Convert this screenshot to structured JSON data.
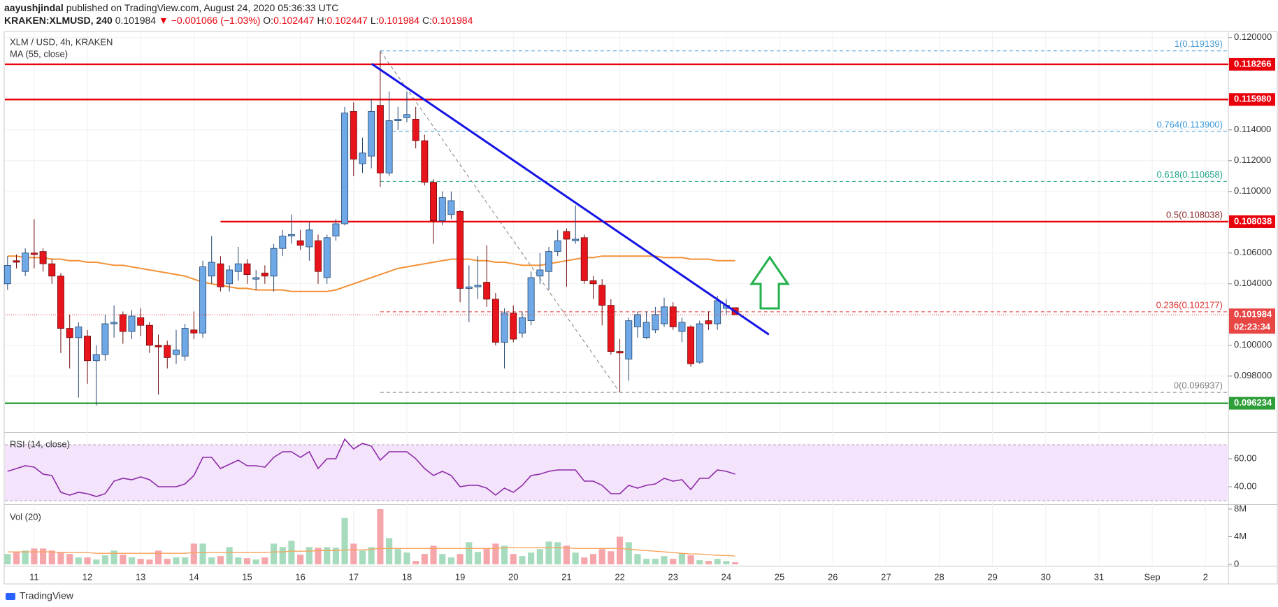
{
  "header": {
    "author": "aayushjindal",
    "published": "published on TradingView.com, August 24, 2020 05:36:33 UTC",
    "symbol": "KRAKEN:XLMUSD, 240",
    "price": "0.101984",
    "change": "▼ −0.001066 (−1.03%)",
    "ohlc": [
      {
        "label": "O:",
        "value": "0.102447"
      },
      {
        "label": "H:",
        "value": "0.102447"
      },
      {
        "label": "L:",
        "value": "0.101984"
      },
      {
        "label": "C:",
        "value": "0.101984"
      }
    ]
  },
  "brand": "TradingView",
  "chart_data": [
    {
      "type": "candlestick",
      "title": "XLM / USD, 4h, KRAKEN",
      "x": [
        10.5,
        10.667,
        10.833,
        11,
        11.167,
        11.333,
        11.5,
        11.667,
        11.833,
        12,
        12.167,
        12.333,
        12.5,
        12.667,
        12.833,
        13,
        13.167,
        13.333,
        13.5,
        13.667,
        13.833,
        14,
        14.167,
        14.333,
        14.5,
        14.667,
        14.833,
        15,
        15.167,
        15.333,
        15.5,
        15.667,
        15.833,
        16,
        16.167,
        16.333,
        16.5,
        16.667,
        16.833,
        17,
        17.167,
        17.333,
        17.5,
        17.667,
        17.833,
        18,
        18.167,
        18.333,
        18.5,
        18.667,
        18.833,
        19,
        19.167,
        19.333,
        19.5,
        19.667,
        19.833,
        20,
        20.167,
        20.333,
        20.5,
        20.667,
        20.833,
        21,
        21.167,
        21.333,
        21.5,
        21.667,
        21.833,
        22,
        22.167,
        22.333,
        22.5,
        22.667,
        22.833,
        23,
        23.167,
        23.333,
        23.5,
        23.667,
        23.833,
        24,
        24.167
      ],
      "open": [
        0.104,
        0.1055,
        0.1048,
        0.106,
        0.1061,
        0.1053,
        0.1045,
        0.1011,
        0.1005,
        0.1006,
        0.099,
        0.0994,
        0.1014,
        0.102,
        0.1009,
        0.1018,
        0.1013,
        0.1,
        0.1,
        0.0994,
        0.0993,
        0.101,
        0.1008,
        0.1045,
        0.1053,
        0.104,
        0.1048,
        0.1053,
        0.1043,
        0.1047,
        0.1045,
        0.1063,
        0.1071,
        0.1068,
        0.1064,
        0.1068,
        0.1044,
        0.1071,
        0.1079,
        0.1152,
        0.1118,
        0.1123,
        0.1156,
        0.1112,
        0.1146,
        0.1148,
        0.1147,
        0.1133,
        0.1106,
        0.1081,
        0.1085,
        0.1087,
        0.1037,
        0.1038,
        0.1041,
        0.103,
        0.1002,
        0.1021,
        0.1008,
        0.1016,
        0.1045,
        0.1048,
        0.1061,
        0.1074,
        0.1068,
        0.107,
        0.1042,
        0.1039,
        0.1026,
        0.0996,
        0.0991,
        0.1012,
        0.1005,
        0.101,
        0.1014,
        0.1025,
        0.1009,
        0.1012,
        0.0989,
        0.1016,
        0.1014,
        0.1024,
        0.102447
      ],
      "high": [
        0.1058,
        0.1059,
        0.1063,
        0.1082,
        0.1063,
        0.1056,
        0.1047,
        0.102,
        0.1015,
        0.101,
        0.1,
        0.102,
        0.1026,
        0.1022,
        0.1023,
        0.1024,
        0.1015,
        0.1007,
        0.1003,
        0.101,
        0.1014,
        0.1022,
        0.1055,
        0.1071,
        0.1058,
        0.1052,
        0.1064,
        0.1056,
        0.1049,
        0.1052,
        0.1066,
        0.1075,
        0.1085,
        0.1075,
        0.108,
        0.1072,
        0.1072,
        0.1082,
        0.1155,
        0.1158,
        0.1135,
        0.116,
        0.1191,
        0.1165,
        0.1155,
        0.1165,
        0.1155,
        0.1137,
        0.1108,
        0.11,
        0.11,
        0.1088,
        0.1052,
        0.1058,
        0.1065,
        0.1034,
        0.1024,
        0.1026,
        0.1022,
        0.1048,
        0.106,
        0.1064,
        0.1075,
        0.1076,
        0.1091,
        0.1072,
        0.1045,
        0.1043,
        0.103,
        0.1004,
        0.1018,
        0.1022,
        0.1022,
        0.1025,
        0.1031,
        0.1028,
        0.1018,
        0.1013,
        0.1016,
        0.1022,
        0.1032,
        0.103,
        0.102447
      ],
      "low": [
        0.1036,
        0.105,
        0.1045,
        0.105,
        0.1048,
        0.104,
        0.0995,
        0.0985,
        0.0966,
        0.0975,
        0.0961,
        0.099,
        0.1005,
        0.1001,
        0.1004,
        0.1006,
        0.0995,
        0.0968,
        0.0985,
        0.0988,
        0.099,
        0.1004,
        0.1005,
        0.104,
        0.1035,
        0.1035,
        0.1042,
        0.104,
        0.1036,
        0.104,
        0.1035,
        0.1058,
        0.1066,
        0.1062,
        0.1055,
        0.104,
        0.104,
        0.1068,
        0.1078,
        0.111,
        0.1112,
        0.1115,
        0.1103,
        0.111,
        0.114,
        0.1145,
        0.1128,
        0.1104,
        0.1066,
        0.1078,
        0.1082,
        0.1028,
        0.1015,
        0.103,
        0.1025,
        0.1,
        0.0985,
        0.1002,
        0.1005,
        0.1013,
        0.104,
        0.1036,
        0.1058,
        0.1038,
        0.1066,
        0.104,
        0.103,
        0.1013,
        0.0994,
        0.097,
        0.0977,
        0.1005,
        0.1004,
        0.1008,
        0.1012,
        0.101,
        0.1002,
        0.0986,
        0.0988,
        0.101,
        0.101,
        0.102,
        0.101984
      ],
      "close": [
        0.1052,
        0.1054,
        0.106,
        0.1059,
        0.1053,
        0.1045,
        0.1011,
        0.1005,
        0.1012,
        0.099,
        0.0994,
        0.1014,
        0.1015,
        0.1009,
        0.1019,
        0.1013,
        0.1,
        0.0999,
        0.0992,
        0.0997,
        0.1011,
        0.1008,
        0.1051,
        0.1054,
        0.1038,
        0.1049,
        0.1053,
        0.1046,
        0.1044,
        0.1045,
        0.1063,
        0.1071,
        0.1072,
        0.1065,
        0.1075,
        0.1048,
        0.107,
        0.1079,
        0.1151,
        0.1121,
        0.1125,
        0.1152,
        0.1112,
        0.1146,
        0.1147,
        0.115,
        0.1133,
        0.1106,
        0.1081,
        0.1096,
        0.1094,
        0.1037,
        0.1038,
        0.1039,
        0.103,
        0.1002,
        0.1021,
        0.1004,
        0.1018,
        0.1044,
        0.1049,
        0.1061,
        0.1068,
        0.1069,
        0.1069,
        0.1042,
        0.104,
        0.1026,
        0.0996,
        0.0995,
        0.1016,
        0.102,
        0.1015,
        0.102,
        0.1025,
        0.1012,
        0.1015,
        0.0988,
        0.1014,
        0.1014,
        0.1029,
        0.1026,
        0.101984
      ],
      "up_color": "#6fa8e6",
      "up_border": "#23466f",
      "down_color": "#e8141c",
      "down_border": "#6e0a0a",
      "series": [
        {
          "name": "MA (55, close)",
          "color": "#f39136",
          "values": [
            0.1058,
            0.1058,
            0.1057,
            0.1057,
            0.1057,
            0.1056,
            0.1056,
            0.1055,
            0.1055,
            0.1054,
            0.1054,
            0.1053,
            0.1052,
            0.1052,
            0.1051,
            0.105,
            0.1049,
            0.1048,
            0.1047,
            0.1046,
            0.1045,
            0.1043,
            0.1041,
            0.104,
            0.1039,
            0.1038,
            0.1037,
            0.1037,
            0.1036,
            0.1036,
            0.1036,
            0.1036,
            0.1035,
            0.1035,
            0.1035,
            0.1035,
            0.1035,
            0.1036,
            0.1038,
            0.104,
            0.1042,
            0.1044,
            0.1046,
            0.1048,
            0.105,
            0.1051,
            0.1052,
            0.1053,
            0.1054,
            0.1055,
            0.1056,
            0.1056,
            0.1056,
            0.1055,
            0.1055,
            0.1054,
            0.1054,
            0.1053,
            0.1052,
            0.1052,
            0.1052,
            0.1053,
            0.1054,
            0.1055,
            0.1056,
            0.1057,
            0.1057,
            0.1058,
            0.1058,
            0.1058,
            0.1058,
            0.1058,
            0.1058,
            0.1058,
            0.1057,
            0.1057,
            0.1057,
            0.1056,
            0.1056,
            0.1056,
            0.1055,
            0.1055,
            0.1055
          ]
        }
      ],
      "xlim": [
        10.45,
        33.43
      ],
      "xticks": [
        11,
        12,
        13,
        14,
        15,
        16,
        17,
        18,
        19,
        20,
        21,
        22,
        23,
        24,
        25,
        26,
        27,
        28,
        29,
        30,
        31,
        {
          "value": 32,
          "label": "Sep"
        },
        {
          "value": 33,
          "label": "2"
        }
      ],
      "ylim": [
        0.0944,
        0.1204
      ],
      "yticks": [
        {
          "value": 0.12,
          "label": "0.120000"
        },
        {
          "value": 0.114,
          "label": "0.114000"
        },
        {
          "value": 0.112,
          "label": "0.112000"
        },
        {
          "value": 0.11,
          "label": "0.110000"
        },
        {
          "value": 0.106,
          "label": "0.106000"
        },
        {
          "value": 0.104,
          "label": "0.104000"
        },
        {
          "value": 0.1,
          "label": "0.100000"
        },
        {
          "value": 0.098,
          "label": "0.098000"
        }
      ],
      "grid": true,
      "levels": [
        {
          "value": 0.118266,
          "label": "0.118266",
          "color": "#e8000b"
        },
        {
          "value": 0.11598,
          "label": "0.115980",
          "color": "#e8000b"
        },
        {
          "value": 0.108038,
          "label": "0.108038",
          "color": "#e8000b",
          "x_start": 14.5
        },
        {
          "value": 0.096234,
          "label": "0.096234",
          "color": "#2e9e38"
        }
      ],
      "trendline": {
        "x": [
          17.34,
          24.8
        ],
        "values": [
          0.1183,
          0.1007
        ],
        "color": "#1414e6"
      },
      "fib": {
        "x": [
          17.5,
          22
        ],
        "color": "#808080",
        "levels": [
          {
            "value": 0.119139,
            "label": "1(0.119139)",
            "color": "#4a9bd6"
          },
          {
            "value": 0.1139,
            "label": "0.764(0.113900)",
            "color": "#3b9ad9"
          },
          {
            "value": 0.110658,
            "label": "0.618(0.110658)",
            "color": "#1fa38a"
          },
          {
            "value": 0.108038,
            "label": "0.5(0.108038)",
            "color": "#8a2b2b"
          },
          {
            "value": 0.102177,
            "label": "0.236(0.102177)",
            "color": "#e03030"
          },
          {
            "value": 0.096937,
            "label": "0(0.096937)",
            "color": "#808080"
          }
        ]
      },
      "last_price": {
        "value": 0.101984,
        "label": "0.101984",
        "color": "#e84545"
      },
      "countdown": "02:23:34"
    },
    {
      "type": "line",
      "title": "RSI (14, close)",
      "color": "#8e2aa8",
      "values": [
        51,
        53,
        55,
        54,
        49,
        48,
        36,
        34,
        36,
        35,
        33,
        35,
        44,
        46,
        45,
        47,
        45,
        40,
        40,
        40,
        42,
        48,
        61,
        61,
        53,
        56,
        59,
        55,
        55,
        54,
        61,
        65,
        65,
        61,
        65,
        53,
        60,
        60,
        74,
        67,
        71,
        69,
        59,
        65,
        65,
        65,
        60,
        53,
        48,
        51,
        48,
        40,
        41,
        41,
        39,
        34,
        39,
        36,
        41,
        48,
        49,
        51,
        52,
        52,
        52,
        44,
        44,
        41,
        35,
        35,
        41,
        39,
        41,
        42,
        46,
        44,
        45,
        38,
        46,
        46,
        52,
        51,
        49
      ],
      "ylim": [
        28,
        78
      ],
      "yticks": [
        {
          "value": 40,
          "label": "40.00"
        },
        {
          "value": 60,
          "label": "60.00"
        }
      ],
      "band": [
        30,
        70
      ],
      "band_color": "#f3e4fb"
    },
    {
      "type": "bar",
      "title": "Vol (20)",
      "values": [
        1.5,
        1.8,
        2.0,
        2.3,
        2.3,
        2.0,
        1.8,
        1.5,
        1.0,
        1.0,
        0.7,
        1.3,
        2.0,
        1.4,
        1.0,
        0.8,
        0.7,
        2.0,
        0.8,
        1.0,
        1.0,
        3.0,
        3.0,
        1.0,
        1.2,
        2.5,
        1.0,
        0.9,
        0.7,
        1.0,
        3.0,
        2.5,
        3.4,
        1.4,
        2.5,
        2.4,
        2.5,
        2.4,
        6.7,
        3.0,
        2.0,
        2.5,
        8.0,
        3.8,
        2.2,
        1.7,
        0.5,
        1.5,
        2.7,
        1.5,
        1.0,
        1.5,
        3.2,
        1.8,
        2.3,
        3.0,
        2.7,
        1.5,
        1.2,
        1.7,
        2.2,
        3.3,
        3.2,
        2.7,
        1.7,
        1.0,
        1.5,
        2.2,
        1.9,
        4.0,
        3.2,
        1.5,
        0.8,
        0.8,
        1.2,
        0.8,
        1.6,
        1.3,
        0.6,
        0.5,
        0.8,
        0.5,
        0.3
      ],
      "up_color": "#a6dcbd",
      "down_color": "#f5a6ab",
      "ma": {
        "color": "#f7a35c",
        "values": [
          1.8,
          1.8,
          1.8,
          1.8,
          1.8,
          1.8,
          1.7,
          1.7,
          1.7,
          1.7,
          1.6,
          1.6,
          1.6,
          1.6,
          1.6,
          1.6,
          1.6,
          1.6,
          1.6,
          1.6,
          1.6,
          1.7,
          1.7,
          1.7,
          1.7,
          1.7,
          1.7,
          1.7,
          1.7,
          1.7,
          1.8,
          1.8,
          1.9,
          1.9,
          1.9,
          2.0,
          2.0,
          2.0,
          2.1,
          2.1,
          2.1,
          2.2,
          2.3,
          2.3,
          2.3,
          2.3,
          2.3,
          2.3,
          2.3,
          2.3,
          2.3,
          2.3,
          2.3,
          2.3,
          2.3,
          2.3,
          2.4,
          2.4,
          2.4,
          2.4,
          2.4,
          2.4,
          2.4,
          2.4,
          2.3,
          2.3,
          2.3,
          2.3,
          2.3,
          2.3,
          2.2,
          2.1,
          2.0,
          1.9,
          1.8,
          1.7,
          1.6,
          1.5,
          1.5,
          1.4,
          1.3,
          1.3,
          1.2
        ]
      },
      "ylim": [
        -0.2,
        8.5
      ],
      "yticks": [
        0,
        {
          "value": 4,
          "label": "4M"
        },
        {
          "value": 8,
          "label": "8M"
        }
      ]
    }
  ]
}
